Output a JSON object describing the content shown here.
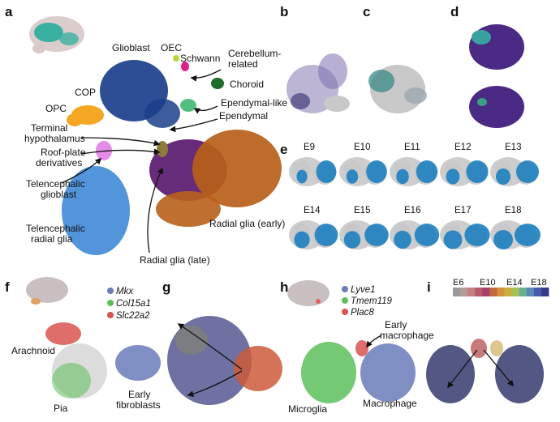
{
  "panels": {
    "a": "a",
    "b": "b",
    "c": "c",
    "d": "d",
    "e": "e",
    "f": "f",
    "g": "g",
    "h": "h",
    "i": "i"
  },
  "panel_a": {
    "labels": {
      "glioblast": "Glioblast",
      "oec": "OEC",
      "schwann": "Schwann",
      "cerebellum1": "Cerebellum-",
      "cerebellum2": "related",
      "choroid": "Choroid",
      "ependymal_like": "Ependymal-like",
      "ependymal": "Ependymal",
      "cop": "COP",
      "opc": "OPC",
      "terminal1": "Terminal",
      "terminal2": "hypothalamus",
      "roof1": "Roof-plate",
      "roof2": "derivatives",
      "tglio1": "Telencephalic",
      "tglio2": "glioblast",
      "trad1": "Telencephalic",
      "trad2": "radial glia",
      "rg_early": "Radial glia (early)",
      "rg_late": "Radial glia (late)"
    }
  },
  "panel_e": {
    "ages": [
      "E9",
      "E10",
      "E11",
      "E12",
      "E13",
      "E14",
      "E15",
      "E16",
      "E17",
      "E18"
    ]
  },
  "panel_f": {
    "legend": [
      {
        "gene": "Mkx",
        "color": "#6a7bb8"
      },
      {
        "gene": "Col15a1",
        "color": "#5cc05a"
      },
      {
        "gene": "Slc22a2",
        "color": "#d9534f"
      }
    ],
    "labels": {
      "arachnoid": "Arachnoid",
      "pia": "Pia",
      "early1": "Early",
      "early2": "fibroblasts"
    }
  },
  "panel_h": {
    "legend": [
      {
        "gene": "Lyve1",
        "color": "#6a7bb8"
      },
      {
        "gene": "Tmem119",
        "color": "#5cc05a"
      },
      {
        "gene": "Plac8",
        "color": "#d9534f"
      }
    ],
    "labels": {
      "early1": "Early",
      "early2": "macrophage",
      "microglia": "Microglia",
      "macrophage": "Macrophage"
    }
  },
  "panel_i": {
    "ticks": [
      "E6",
      "E10",
      "E14",
      "E18"
    ]
  },
  "colors": {
    "glioblast": "#1b3f8b",
    "rg_early": "#b8601a",
    "rg_late": "#5a1a6e",
    "telencephalic_radial": "#4a8fd8",
    "cop": "#f5a623",
    "roof": "#e58be8",
    "choroid": "#1f6b2a",
    "schwann": "#e0208a",
    "oec": "#b6d63a",
    "ependymal": "#36b36a",
    "expression": "#1d7fbf",
    "grey": "#c8c8c8"
  }
}
